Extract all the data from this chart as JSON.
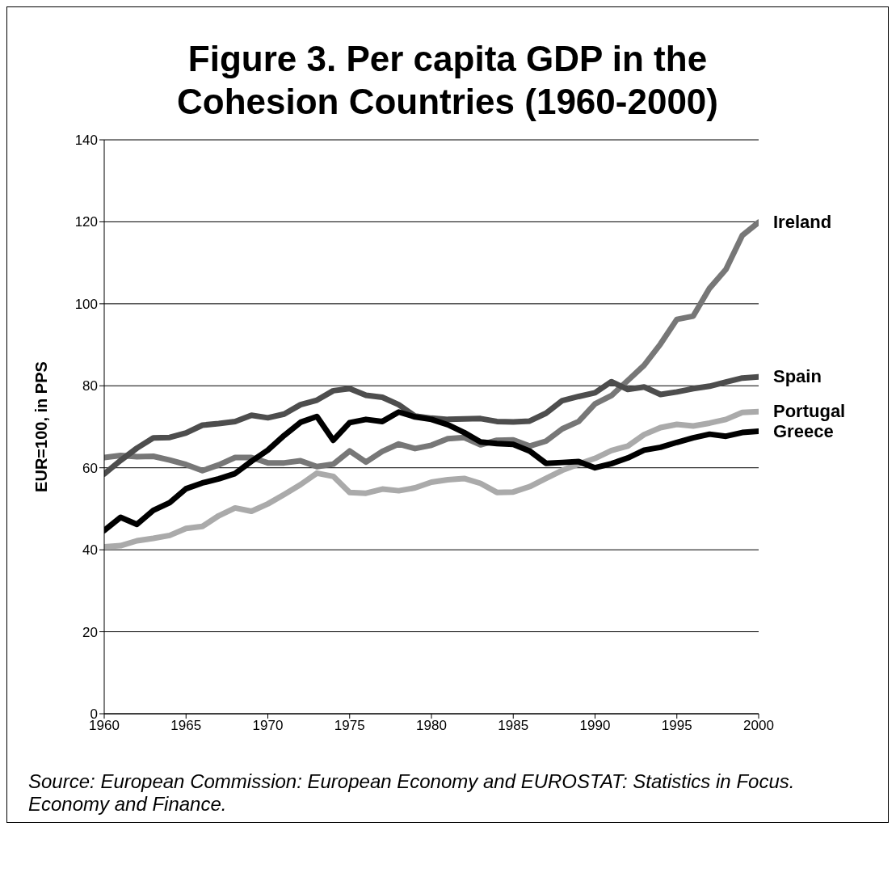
{
  "chart_data": {
    "type": "line",
    "title": "Figure 3. Per capita GDP in the Cohesion Countries (1960-2000)",
    "ylabel": "EUR=100, in PPS",
    "x": [
      1960,
      1961,
      1962,
      1963,
      1964,
      1965,
      1966,
      1967,
      1968,
      1969,
      1970,
      1971,
      1972,
      1973,
      1974,
      1975,
      1976,
      1977,
      1978,
      1979,
      1980,
      1981,
      1982,
      1983,
      1984,
      1985,
      1986,
      1987,
      1988,
      1989,
      1990,
      1991,
      1992,
      1993,
      1994,
      1995,
      1996,
      1997,
      1998,
      1999,
      2000
    ],
    "series": [
      {
        "name": "Ireland",
        "color": "#777777",
        "values": [
          62.5,
          63.0,
          62.7,
          62.8,
          61.9,
          60.8,
          59.3,
          60.7,
          62.5,
          62.5,
          61.2,
          61.2,
          61.7,
          60.3,
          60.9,
          64.1,
          61.4,
          64.0,
          65.8,
          64.7,
          65.5,
          67.1,
          67.4,
          65.6,
          66.7,
          66.8,
          65.3,
          66.5,
          69.5,
          71.3,
          75.6,
          77.6,
          81.3,
          85.0,
          90.2,
          96.2,
          97.0,
          103.8,
          108.4,
          116.7,
          119.9
        ]
      },
      {
        "name": "Spain",
        "color": "#4d4d4d",
        "values": [
          58.5,
          61.8,
          64.8,
          67.3,
          67.4,
          68.5,
          70.4,
          70.8,
          71.3,
          72.8,
          72.2,
          73.1,
          75.4,
          76.5,
          78.8,
          79.3,
          77.7,
          77.2,
          75.4,
          72.6,
          72.1,
          71.8,
          71.9,
          72.0,
          71.3,
          71.2,
          71.4,
          73.3,
          76.4,
          77.4,
          78.3,
          81.0,
          79.1,
          79.7,
          77.9,
          78.5,
          79.3,
          79.9,
          80.9,
          81.9,
          82.2
        ]
      },
      {
        "name": "Portugal",
        "color": "#aaaaaa",
        "values": [
          40.7,
          41.0,
          42.2,
          42.8,
          43.5,
          45.2,
          45.7,
          48.3,
          50.2,
          49.4,
          51.2,
          53.5,
          55.9,
          58.7,
          57.9,
          54.0,
          53.8,
          54.8,
          54.4,
          55.1,
          56.5,
          57.1,
          57.4,
          56.2,
          54.0,
          54.1,
          55.4,
          57.4,
          59.4,
          60.9,
          62.3,
          64.2,
          65.3,
          68.1,
          69.8,
          70.6,
          70.2,
          70.9,
          71.8,
          73.5,
          73.7
        ]
      },
      {
        "name": "Greece",
        "color": "#000000",
        "values": [
          44.7,
          47.9,
          46.2,
          49.6,
          51.5,
          54.9,
          56.3,
          57.3,
          58.6,
          61.6,
          64.3,
          67.9,
          71.1,
          72.5,
          66.7,
          71.0,
          71.8,
          71.3,
          73.6,
          72.4,
          71.8,
          70.5,
          68.6,
          66.3,
          65.9,
          65.7,
          64.1,
          61.1,
          61.3,
          61.5,
          60.0,
          61.0,
          62.4,
          64.3,
          65.0,
          66.2,
          67.3,
          68.2,
          67.7,
          68.6,
          68.9
        ]
      }
    ],
    "xlim": [
      1960,
      2000
    ],
    "xticks": [
      1960,
      1965,
      1970,
      1975,
      1980,
      1985,
      1990,
      1995,
      2000
    ],
    "ylim": [
      0,
      140
    ],
    "yticks": [
      0,
      20,
      40,
      60,
      80,
      100,
      120,
      140
    ],
    "grid": "y",
    "line_style": "solid",
    "annotations": [
      "Source: European Commission: European Economy and EUROSTAT: Statistics in Focus. Economy and Finance."
    ]
  }
}
